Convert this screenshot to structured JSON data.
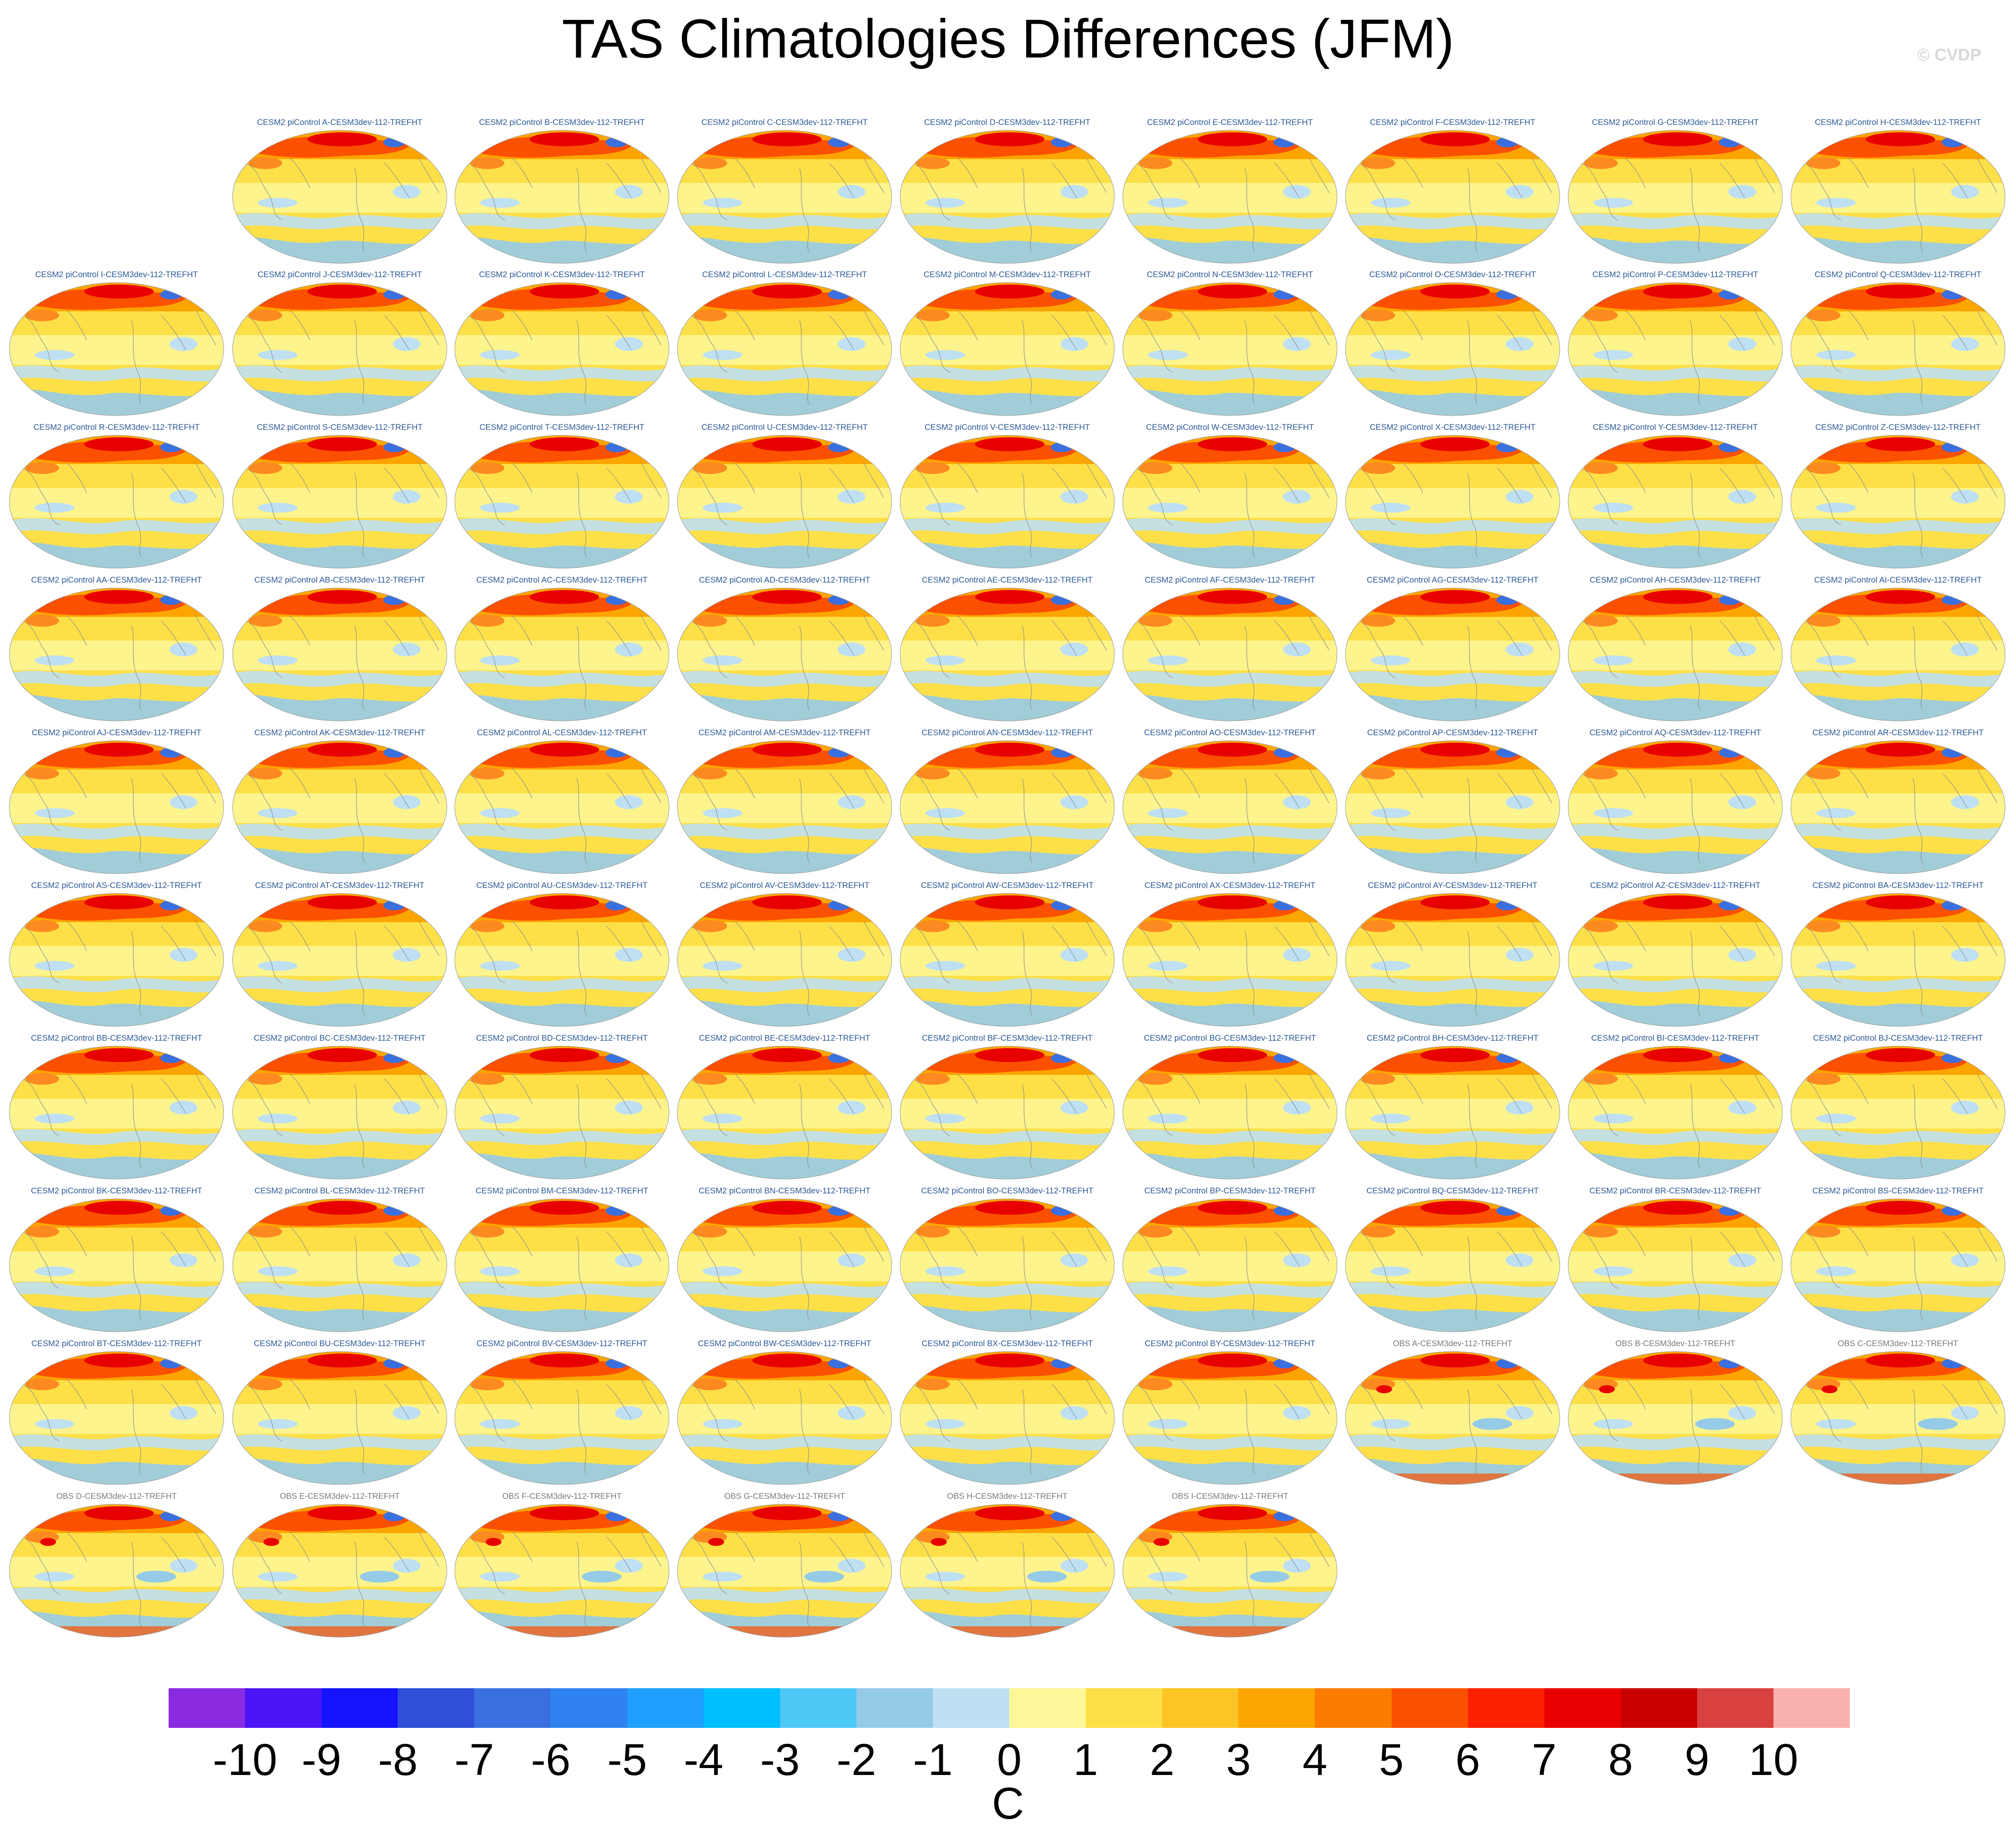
{
  "title": "TAS Climatologies Differences (JFM)",
  "credit": "© CVDP",
  "panels": [
    {
      "label": "CESM2 piControl A-CESM3dev-112-TREFHT",
      "kind": "model"
    },
    {
      "label": "CESM2 piControl B-CESM3dev-112-TREFHT",
      "kind": "model"
    },
    {
      "label": "CESM2 piControl C-CESM3dev-112-TREFHT",
      "kind": "model"
    },
    {
      "label": "CESM2 piControl D-CESM3dev-112-TREFHT",
      "kind": "model"
    },
    {
      "label": "CESM2 piControl E-CESM3dev-112-TREFHT",
      "kind": "model"
    },
    {
      "label": "CESM2 piControl F-CESM3dev-112-TREFHT",
      "kind": "model"
    },
    {
      "label": "CESM2 piControl G-CESM3dev-112-TREFHT",
      "kind": "model"
    },
    {
      "label": "CESM2 piControl H-CESM3dev-112-TREFHT",
      "kind": "model"
    },
    {
      "label": "CESM2 piControl I-CESM3dev-112-TREFHT",
      "kind": "model"
    },
    {
      "label": "CESM2 piControl J-CESM3dev-112-TREFHT",
      "kind": "model"
    },
    {
      "label": "CESM2 piControl K-CESM3dev-112-TREFHT",
      "kind": "model"
    },
    {
      "label": "CESM2 piControl L-CESM3dev-112-TREFHT",
      "kind": "model"
    },
    {
      "label": "CESM2 piControl M-CESM3dev-112-TREFHT",
      "kind": "model"
    },
    {
      "label": "CESM2 piControl N-CESM3dev-112-TREFHT",
      "kind": "model"
    },
    {
      "label": "CESM2 piControl O-CESM3dev-112-TREFHT",
      "kind": "model"
    },
    {
      "label": "CESM2 piControl P-CESM3dev-112-TREFHT",
      "kind": "model"
    },
    {
      "label": "CESM2 piControl Q-CESM3dev-112-TREFHT",
      "kind": "model"
    },
    {
      "label": "CESM2 piControl R-CESM3dev-112-TREFHT",
      "kind": "model"
    },
    {
      "label": "CESM2 piControl S-CESM3dev-112-TREFHT",
      "kind": "model"
    },
    {
      "label": "CESM2 piControl T-CESM3dev-112-TREFHT",
      "kind": "model"
    },
    {
      "label": "CESM2 piControl U-CESM3dev-112-TREFHT",
      "kind": "model"
    },
    {
      "label": "CESM2 piControl V-CESM3dev-112-TREFHT",
      "kind": "model"
    },
    {
      "label": "CESM2 piControl W-CESM3dev-112-TREFHT",
      "kind": "model"
    },
    {
      "label": "CESM2 piControl X-CESM3dev-112-TREFHT",
      "kind": "model"
    },
    {
      "label": "CESM2 piControl Y-CESM3dev-112-TREFHT",
      "kind": "model"
    },
    {
      "label": "CESM2 piControl Z-CESM3dev-112-TREFHT",
      "kind": "model"
    },
    {
      "label": "CESM2 piControl AA-CESM3dev-112-TREFHT",
      "kind": "model"
    },
    {
      "label": "CESM2 piControl AB-CESM3dev-112-TREFHT",
      "kind": "model"
    },
    {
      "label": "CESM2 piControl AC-CESM3dev-112-TREFHT",
      "kind": "model"
    },
    {
      "label": "CESM2 piControl AD-CESM3dev-112-TREFHT",
      "kind": "model"
    },
    {
      "label": "CESM2 piControl AE-CESM3dev-112-TREFHT",
      "kind": "model"
    },
    {
      "label": "CESM2 piControl AF-CESM3dev-112-TREFHT",
      "kind": "model"
    },
    {
      "label": "CESM2 piControl AG-CESM3dev-112-TREFHT",
      "kind": "model"
    },
    {
      "label": "CESM2 piControl AH-CESM3dev-112-TREFHT",
      "kind": "model"
    },
    {
      "label": "CESM2 piControl AI-CESM3dev-112-TREFHT",
      "kind": "model"
    },
    {
      "label": "CESM2 piControl AJ-CESM3dev-112-TREFHT",
      "kind": "model"
    },
    {
      "label": "CESM2 piControl AK-CESM3dev-112-TREFHT",
      "kind": "model"
    },
    {
      "label": "CESM2 piControl AL-CESM3dev-112-TREFHT",
      "kind": "model"
    },
    {
      "label": "CESM2 piControl AM-CESM3dev-112-TREFHT",
      "kind": "model"
    },
    {
      "label": "CESM2 piControl AN-CESM3dev-112-TREFHT",
      "kind": "model"
    },
    {
      "label": "CESM2 piControl AO-CESM3dev-112-TREFHT",
      "kind": "model"
    },
    {
      "label": "CESM2 piControl AP-CESM3dev-112-TREFHT",
      "kind": "model"
    },
    {
      "label": "CESM2 piControl AQ-CESM3dev-112-TREFHT",
      "kind": "model"
    },
    {
      "label": "CESM2 piControl AR-CESM3dev-112-TREFHT",
      "kind": "model"
    },
    {
      "label": "CESM2 piControl AS-CESM3dev-112-TREFHT",
      "kind": "model"
    },
    {
      "label": "CESM2 piControl AT-CESM3dev-112-TREFHT",
      "kind": "model"
    },
    {
      "label": "CESM2 piControl AU-CESM3dev-112-TREFHT",
      "kind": "model"
    },
    {
      "label": "CESM2 piControl AV-CESM3dev-112-TREFHT",
      "kind": "model"
    },
    {
      "label": "CESM2 piControl AW-CESM3dev-112-TREFHT",
      "kind": "model"
    },
    {
      "label": "CESM2 piControl AX-CESM3dev-112-TREFHT",
      "kind": "model"
    },
    {
      "label": "CESM2 piControl AY-CESM3dev-112-TREFHT",
      "kind": "model"
    },
    {
      "label": "CESM2 piControl AZ-CESM3dev-112-TREFHT",
      "kind": "model"
    },
    {
      "label": "CESM2 piControl BA-CESM3dev-112-TREFHT",
      "kind": "model"
    },
    {
      "label": "CESM2 piControl BB-CESM3dev-112-TREFHT",
      "kind": "model"
    },
    {
      "label": "CESM2 piControl BC-CESM3dev-112-TREFHT",
      "kind": "model"
    },
    {
      "label": "CESM2 piControl BD-CESM3dev-112-TREFHT",
      "kind": "model"
    },
    {
      "label": "CESM2 piControl BE-CESM3dev-112-TREFHT",
      "kind": "model"
    },
    {
      "label": "CESM2 piControl BF-CESM3dev-112-TREFHT",
      "kind": "model"
    },
    {
      "label": "CESM2 piControl BG-CESM3dev-112-TREFHT",
      "kind": "model"
    },
    {
      "label": "CESM2 piControl BH-CESM3dev-112-TREFHT",
      "kind": "model"
    },
    {
      "label": "CESM2 piControl BI-CESM3dev-112-TREFHT",
      "kind": "model"
    },
    {
      "label": "CESM2 piControl BJ-CESM3dev-112-TREFHT",
      "kind": "model"
    },
    {
      "label": "CESM2 piControl BK-CESM3dev-112-TREFHT",
      "kind": "model"
    },
    {
      "label": "CESM2 piControl BL-CESM3dev-112-TREFHT",
      "kind": "model"
    },
    {
      "label": "CESM2 piControl BM-CESM3dev-112-TREFHT",
      "kind": "model"
    },
    {
      "label": "CESM2 piControl BN-CESM3dev-112-TREFHT",
      "kind": "model"
    },
    {
      "label": "CESM2 piControl BO-CESM3dev-112-TREFHT",
      "kind": "model"
    },
    {
      "label": "CESM2 piControl BP-CESM3dev-112-TREFHT",
      "kind": "model"
    },
    {
      "label": "CESM2 piControl BQ-CESM3dev-112-TREFHT",
      "kind": "model"
    },
    {
      "label": "CESM2 piControl BR-CESM3dev-112-TREFHT",
      "kind": "model"
    },
    {
      "label": "CESM2 piControl BS-CESM3dev-112-TREFHT",
      "kind": "model"
    },
    {
      "label": "CESM2 piControl BT-CESM3dev-112-TREFHT",
      "kind": "model"
    },
    {
      "label": "CESM2 piControl BU-CESM3dev-112-TREFHT",
      "kind": "model"
    },
    {
      "label": "CESM2 piControl BV-CESM3dev-112-TREFHT",
      "kind": "model"
    },
    {
      "label": "CESM2 piControl BW-CESM3dev-112-TREFHT",
      "kind": "model"
    },
    {
      "label": "CESM2 piControl BX-CESM3dev-112-TREFHT",
      "kind": "model"
    },
    {
      "label": "CESM2 piControl BY-CESM3dev-112-TREFHT",
      "kind": "model"
    },
    {
      "label": "OBS A-CESM3dev-112-TREFHT",
      "kind": "obs"
    },
    {
      "label": "OBS B-CESM3dev-112-TREFHT",
      "kind": "obs"
    },
    {
      "label": "OBS C-CESM3dev-112-TREFHT",
      "kind": "obs"
    },
    {
      "label": "OBS D-CESM3dev-112-TREFHT",
      "kind": "obs"
    },
    {
      "label": "OBS E-CESM3dev-112-TREFHT",
      "kind": "obs"
    },
    {
      "label": "OBS F-CESM3dev-112-TREFHT",
      "kind": "obs"
    },
    {
      "label": "OBS G-CESM3dev-112-TREFHT",
      "kind": "obs"
    },
    {
      "label": "OBS H-CESM3dev-112-TREFHT",
      "kind": "obs"
    },
    {
      "label": "OBS I-CESM3dev-112-TREFHT",
      "kind": "obs"
    }
  ],
  "colorbar": {
    "colors": [
      "#8a2be2",
      "#4b16f5",
      "#1414ff",
      "#2f4fd8",
      "#3a6fe0",
      "#2f82f0",
      "#1fa0ff",
      "#00bfff",
      "#4ec8f4",
      "#96cbe8",
      "#bfe0f2",
      "#fdf79a",
      "#fde048",
      "#fcc525",
      "#fca500",
      "#fb7d00",
      "#fb5000",
      "#fb2000",
      "#e80000",
      "#c80000",
      "#d94040",
      "#fbb0b0"
    ],
    "ticks": [
      "-10",
      "-9",
      "-8",
      "-7",
      "-6",
      "-5",
      "-4",
      "-3",
      "-2",
      "-1",
      "0",
      "1",
      "2",
      "3",
      "4",
      "5",
      "6",
      "7",
      "8",
      "9",
      "10"
    ],
    "units": "C"
  }
}
